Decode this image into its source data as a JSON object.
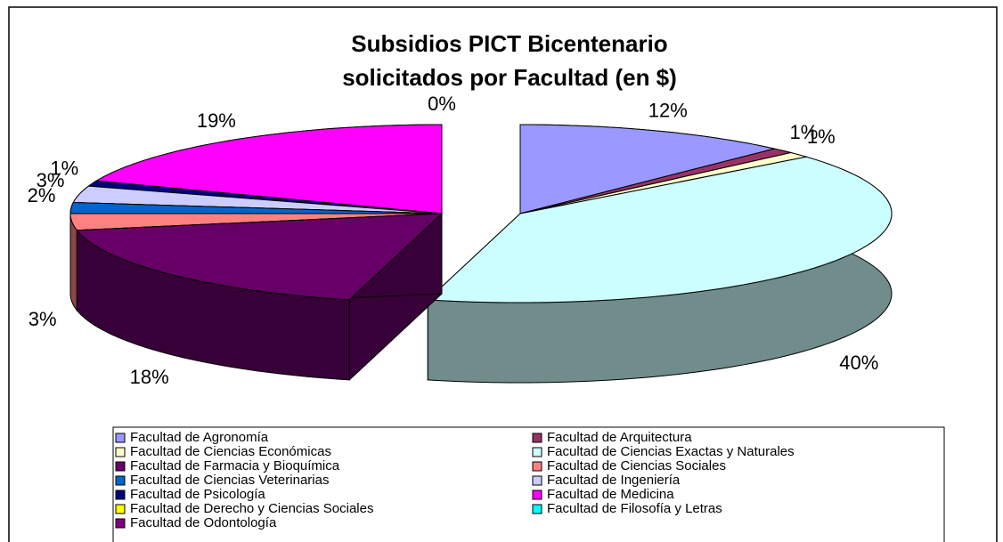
{
  "chart_data": {
    "type": "pie3d",
    "title": [
      "Subsidios PICT Bicentenario",
      "solicitados por Facultad (en $)"
    ],
    "categories": [
      "Facultad de Agronomía",
      "Facultad de Arquitectura",
      "Facultad de Ciencias Económicas",
      "Facultad de Ciencias Exactas y Naturales",
      "Facultad de Farmacia y Bioquímica",
      "Facultad de Ciencias Sociales",
      "Facultad de Ciencias Veterinarias",
      "Facultad de Ingeniería",
      "Facultad de Psicología",
      "Facultad de Medicina",
      "Facultad de Derecho y Ciencias Sociales",
      "Facultad de Filosofía y Letras",
      "Facultad de Odontología"
    ],
    "values": [
      12,
      1,
      1,
      40,
      18,
      3,
      2,
      3,
      1,
      19,
      0,
      0,
      0
    ],
    "value_labels": [
      "12%",
      "1%",
      "1%",
      "40%",
      "18%",
      "3%",
      "2%",
      "3%",
      "1%",
      "19%",
      "0%",
      null,
      null
    ],
    "colors": [
      "#9999FF",
      "#993366",
      "#FFFFCC",
      "#CCFFFF",
      "#660066",
      "#FF8080",
      "#0066CC",
      "#CCCCFF",
      "#000080",
      "#FF00FF",
      "#FFFF00",
      "#00FFFF",
      "#800080"
    ],
    "legend": "bottom"
  }
}
